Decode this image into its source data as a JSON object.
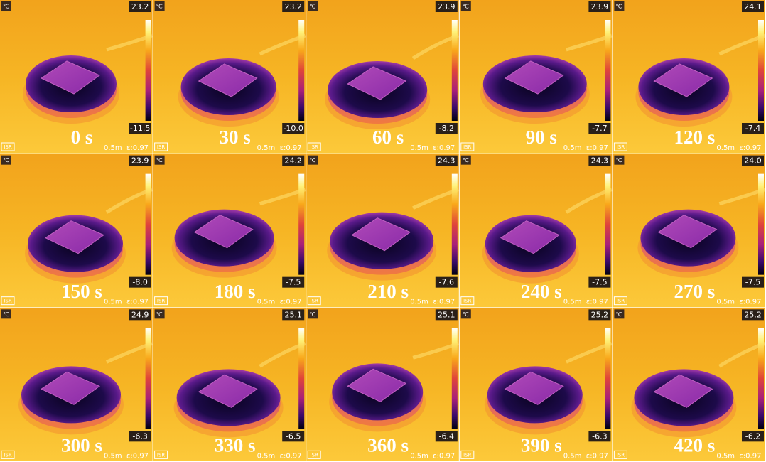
{
  "unit": "℃",
  "distance": "0.5m",
  "emissivity": "ε:0.97",
  "badge": "ISR",
  "panels": [
    {
      "time": "0 s",
      "max": "23.2",
      "min": "-11.5"
    },
    {
      "time": "30 s",
      "max": "23.2",
      "min": "-10.0"
    },
    {
      "time": "60 s",
      "max": "23.9",
      "min": "-8.2"
    },
    {
      "time": "90 s",
      "max": "23.9",
      "min": "-7.7"
    },
    {
      "time": "120 s",
      "max": "24.1",
      "min": "-7.4"
    },
    {
      "time": "150 s",
      "max": "23.9",
      "min": "-8.0"
    },
    {
      "time": "180 s",
      "max": "24.2",
      "min": "-7.5"
    },
    {
      "time": "210 s",
      "max": "24.3",
      "min": "-7.6"
    },
    {
      "time": "240 s",
      "max": "24.3",
      "min": "-7.5"
    },
    {
      "time": "270 s",
      "max": "24.0",
      "min": "-7.5"
    },
    {
      "time": "300 s",
      "max": "24.9",
      "min": "-6.3"
    },
    {
      "time": "330 s",
      "max": "25.1",
      "min": "-6.5"
    },
    {
      "time": "360 s",
      "max": "25.1",
      "min": "-6.4"
    },
    {
      "time": "390 s",
      "max": "25.2",
      "min": "-6.3"
    },
    {
      "time": "420 s",
      "max": "25.2",
      "min": "-6.2"
    }
  ]
}
